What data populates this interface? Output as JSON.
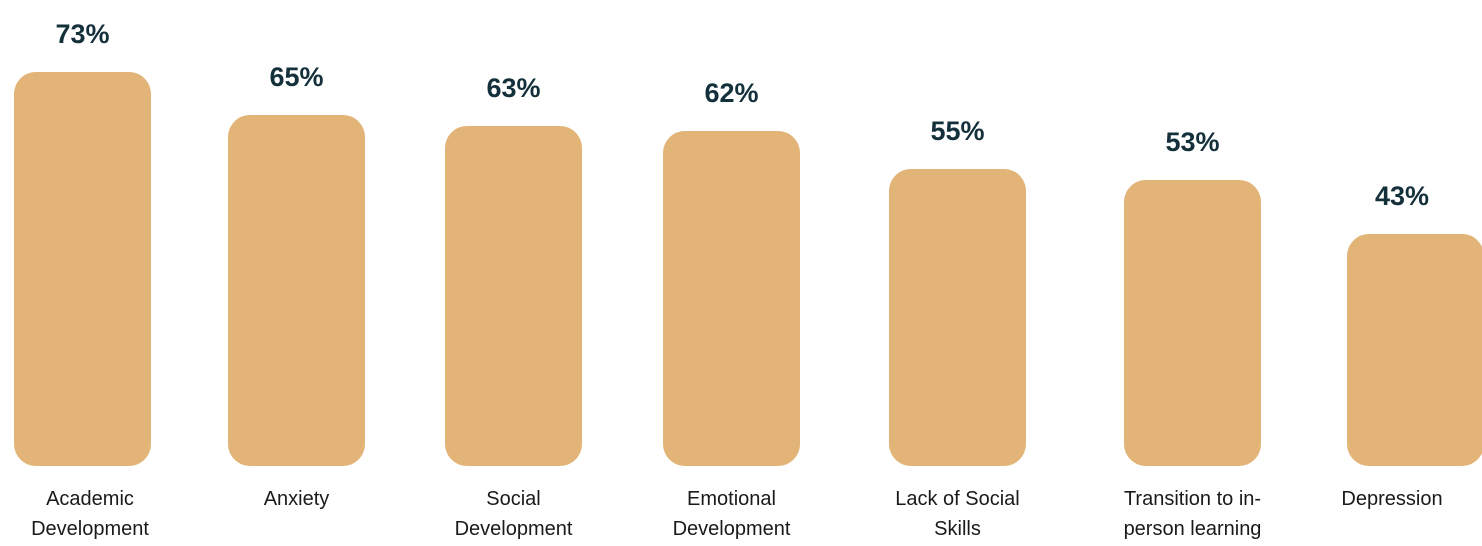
{
  "colors": {
    "bar": "#E2B477",
    "value_text": "#14303B",
    "label_text": "#1a1a1a"
  },
  "chart_data": {
    "type": "bar",
    "title": "",
    "xlabel": "",
    "ylabel": "",
    "ylim": [
      0,
      73
    ],
    "categories": [
      [
        "Academic",
        "Development"
      ],
      [
        "Anxiety"
      ],
      [
        "Social",
        "Development"
      ],
      [
        "Emotional",
        "Development"
      ],
      [
        "Lack of Social",
        "Skills"
      ],
      [
        "Transition to in-",
        "person learning"
      ],
      [
        "Depression"
      ]
    ],
    "values": [
      73,
      65,
      63,
      62,
      55,
      53,
      43
    ],
    "value_labels": [
      "73%",
      "65%",
      "63%",
      "62%",
      "55%",
      "53%",
      "43%"
    ]
  }
}
